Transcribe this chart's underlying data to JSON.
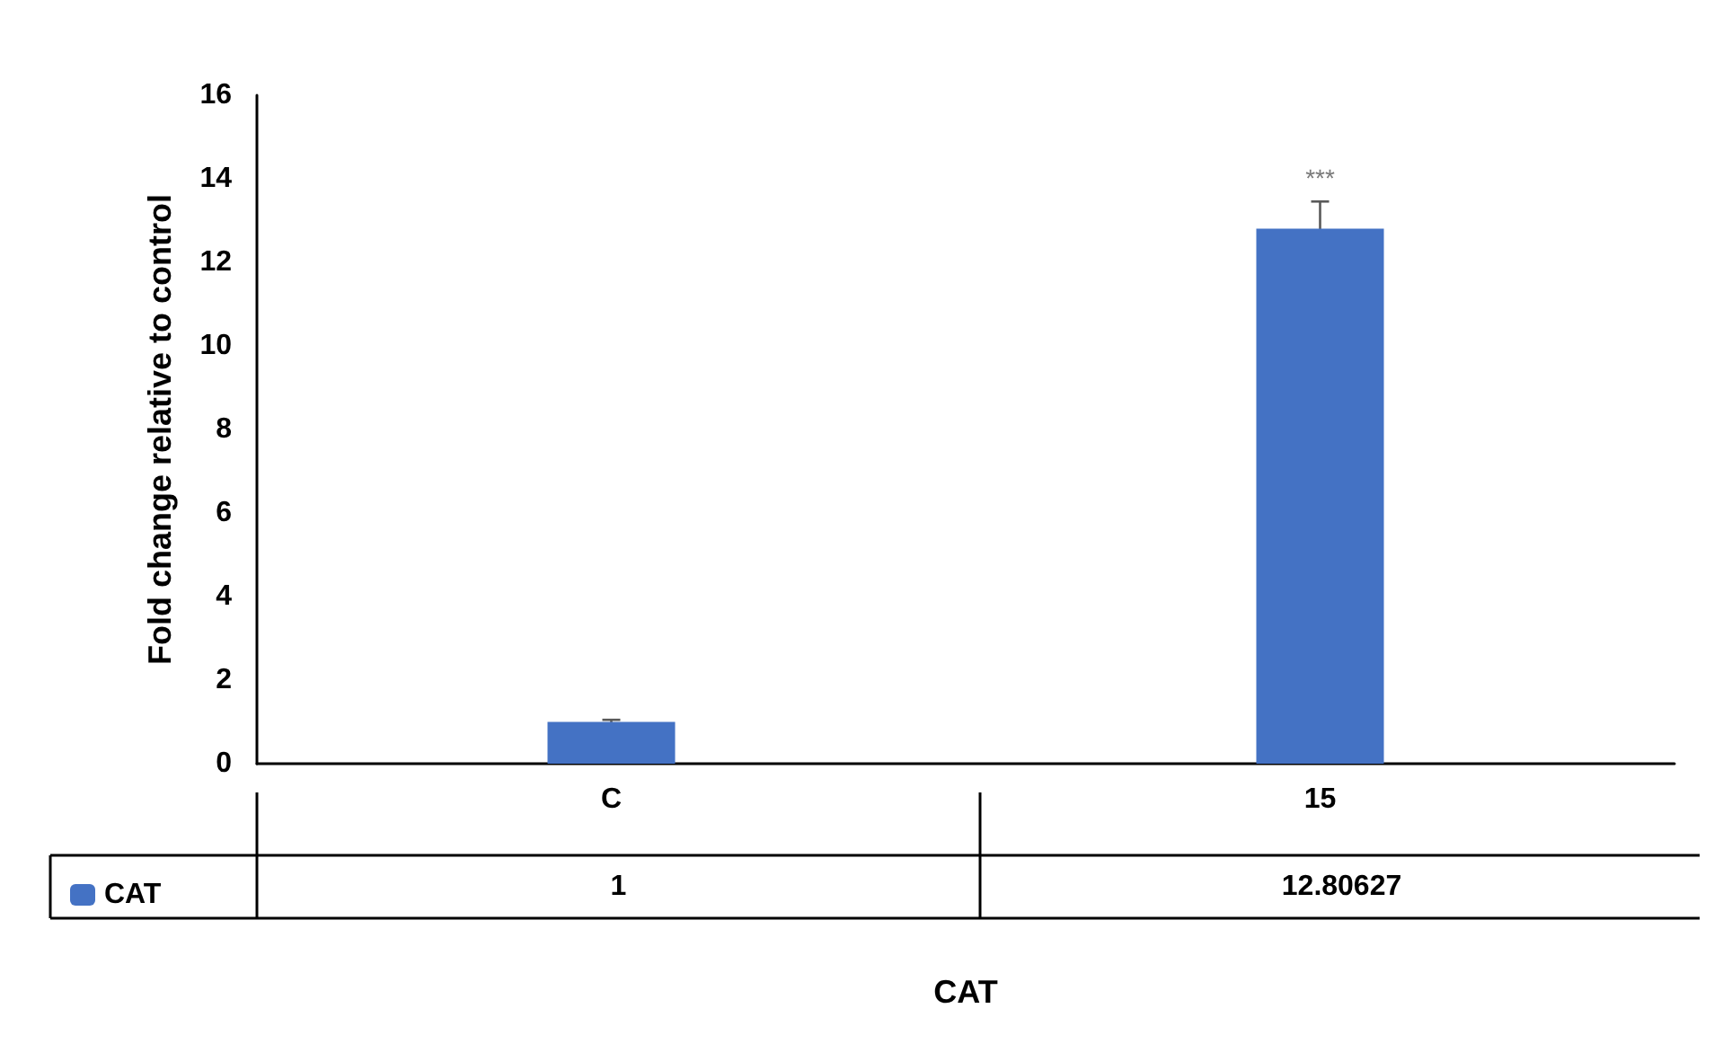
{
  "chart_data": {
    "type": "bar",
    "xlabel": "CAT",
    "ylabel": "Fold change relative to control",
    "categories": [
      "C",
      "15"
    ],
    "series": [
      {
        "name": "CAT",
        "color": "#4472c4",
        "values": [
          1,
          12.80627
        ],
        "errors": [
          0.05,
          0.65
        ]
      }
    ],
    "ylim": [
      0,
      16
    ],
    "yticks": [
      0,
      2,
      4,
      6,
      8,
      10,
      12,
      14,
      16
    ],
    "grid": false,
    "data_labels": true,
    "legend": "bottom left",
    "annotations": [
      {
        "text": "***",
        "x": "15",
        "y": 13.5
      }
    ]
  }
}
